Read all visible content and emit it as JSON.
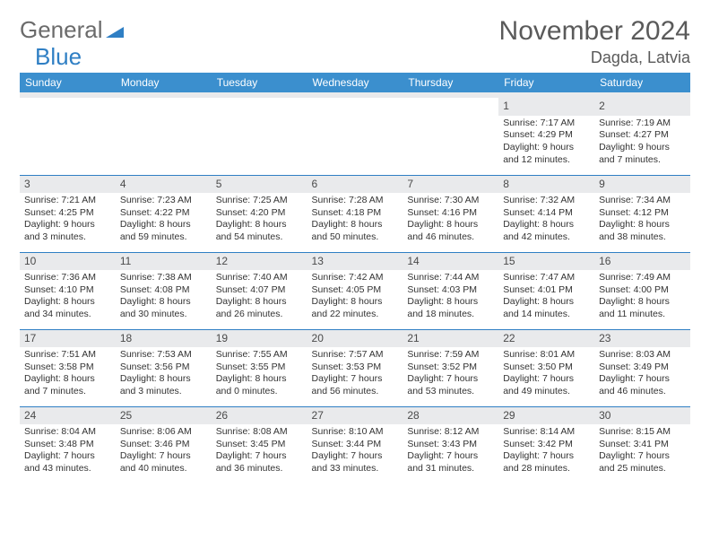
{
  "logo": {
    "part1": "General",
    "part2": "Blue"
  },
  "title": "November 2024",
  "location": "Dagda, Latvia",
  "colors": {
    "header_bg": "#3b8fce",
    "header_text": "#ffffff",
    "daynum_bg": "#e9eaec",
    "border": "#2f7fc4",
    "title_color": "#5a5a5a",
    "body_text": "#333333",
    "logo_blue": "#2f7fc4",
    "logo_gray": "#6b6b6b",
    "page_bg": "#ffffff"
  },
  "typography": {
    "title_fontsize": 30,
    "location_fontsize": 18,
    "header_fontsize": 12,
    "daynum_fontsize": 12,
    "body_fontsize": 10.5,
    "font_family": "Arial"
  },
  "calendar": {
    "type": "table",
    "columns": [
      "Sunday",
      "Monday",
      "Tuesday",
      "Wednesday",
      "Thursday",
      "Friday",
      "Saturday"
    ],
    "weeks": [
      [
        null,
        null,
        null,
        null,
        null,
        {
          "n": "1",
          "sr": "Sunrise: 7:17 AM",
          "ss": "Sunset: 4:29 PM",
          "d1": "Daylight: 9 hours",
          "d2": "and 12 minutes."
        },
        {
          "n": "2",
          "sr": "Sunrise: 7:19 AM",
          "ss": "Sunset: 4:27 PM",
          "d1": "Daylight: 9 hours",
          "d2": "and 7 minutes."
        }
      ],
      [
        {
          "n": "3",
          "sr": "Sunrise: 7:21 AM",
          "ss": "Sunset: 4:25 PM",
          "d1": "Daylight: 9 hours",
          "d2": "and 3 minutes."
        },
        {
          "n": "4",
          "sr": "Sunrise: 7:23 AM",
          "ss": "Sunset: 4:22 PM",
          "d1": "Daylight: 8 hours",
          "d2": "and 59 minutes."
        },
        {
          "n": "5",
          "sr": "Sunrise: 7:25 AM",
          "ss": "Sunset: 4:20 PM",
          "d1": "Daylight: 8 hours",
          "d2": "and 54 minutes."
        },
        {
          "n": "6",
          "sr": "Sunrise: 7:28 AM",
          "ss": "Sunset: 4:18 PM",
          "d1": "Daylight: 8 hours",
          "d2": "and 50 minutes."
        },
        {
          "n": "7",
          "sr": "Sunrise: 7:30 AM",
          "ss": "Sunset: 4:16 PM",
          "d1": "Daylight: 8 hours",
          "d2": "and 46 minutes."
        },
        {
          "n": "8",
          "sr": "Sunrise: 7:32 AM",
          "ss": "Sunset: 4:14 PM",
          "d1": "Daylight: 8 hours",
          "d2": "and 42 minutes."
        },
        {
          "n": "9",
          "sr": "Sunrise: 7:34 AM",
          "ss": "Sunset: 4:12 PM",
          "d1": "Daylight: 8 hours",
          "d2": "and 38 minutes."
        }
      ],
      [
        {
          "n": "10",
          "sr": "Sunrise: 7:36 AM",
          "ss": "Sunset: 4:10 PM",
          "d1": "Daylight: 8 hours",
          "d2": "and 34 minutes."
        },
        {
          "n": "11",
          "sr": "Sunrise: 7:38 AM",
          "ss": "Sunset: 4:08 PM",
          "d1": "Daylight: 8 hours",
          "d2": "and 30 minutes."
        },
        {
          "n": "12",
          "sr": "Sunrise: 7:40 AM",
          "ss": "Sunset: 4:07 PM",
          "d1": "Daylight: 8 hours",
          "d2": "and 26 minutes."
        },
        {
          "n": "13",
          "sr": "Sunrise: 7:42 AM",
          "ss": "Sunset: 4:05 PM",
          "d1": "Daylight: 8 hours",
          "d2": "and 22 minutes."
        },
        {
          "n": "14",
          "sr": "Sunrise: 7:44 AM",
          "ss": "Sunset: 4:03 PM",
          "d1": "Daylight: 8 hours",
          "d2": "and 18 minutes."
        },
        {
          "n": "15",
          "sr": "Sunrise: 7:47 AM",
          "ss": "Sunset: 4:01 PM",
          "d1": "Daylight: 8 hours",
          "d2": "and 14 minutes."
        },
        {
          "n": "16",
          "sr": "Sunrise: 7:49 AM",
          "ss": "Sunset: 4:00 PM",
          "d1": "Daylight: 8 hours",
          "d2": "and 11 minutes."
        }
      ],
      [
        {
          "n": "17",
          "sr": "Sunrise: 7:51 AM",
          "ss": "Sunset: 3:58 PM",
          "d1": "Daylight: 8 hours",
          "d2": "and 7 minutes."
        },
        {
          "n": "18",
          "sr": "Sunrise: 7:53 AM",
          "ss": "Sunset: 3:56 PM",
          "d1": "Daylight: 8 hours",
          "d2": "and 3 minutes."
        },
        {
          "n": "19",
          "sr": "Sunrise: 7:55 AM",
          "ss": "Sunset: 3:55 PM",
          "d1": "Daylight: 8 hours",
          "d2": "and 0 minutes."
        },
        {
          "n": "20",
          "sr": "Sunrise: 7:57 AM",
          "ss": "Sunset: 3:53 PM",
          "d1": "Daylight: 7 hours",
          "d2": "and 56 minutes."
        },
        {
          "n": "21",
          "sr": "Sunrise: 7:59 AM",
          "ss": "Sunset: 3:52 PM",
          "d1": "Daylight: 7 hours",
          "d2": "and 53 minutes."
        },
        {
          "n": "22",
          "sr": "Sunrise: 8:01 AM",
          "ss": "Sunset: 3:50 PM",
          "d1": "Daylight: 7 hours",
          "d2": "and 49 minutes."
        },
        {
          "n": "23",
          "sr": "Sunrise: 8:03 AM",
          "ss": "Sunset: 3:49 PM",
          "d1": "Daylight: 7 hours",
          "d2": "and 46 minutes."
        }
      ],
      [
        {
          "n": "24",
          "sr": "Sunrise: 8:04 AM",
          "ss": "Sunset: 3:48 PM",
          "d1": "Daylight: 7 hours",
          "d2": "and 43 minutes."
        },
        {
          "n": "25",
          "sr": "Sunrise: 8:06 AM",
          "ss": "Sunset: 3:46 PM",
          "d1": "Daylight: 7 hours",
          "d2": "and 40 minutes."
        },
        {
          "n": "26",
          "sr": "Sunrise: 8:08 AM",
          "ss": "Sunset: 3:45 PM",
          "d1": "Daylight: 7 hours",
          "d2": "and 36 minutes."
        },
        {
          "n": "27",
          "sr": "Sunrise: 8:10 AM",
          "ss": "Sunset: 3:44 PM",
          "d1": "Daylight: 7 hours",
          "d2": "and 33 minutes."
        },
        {
          "n": "28",
          "sr": "Sunrise: 8:12 AM",
          "ss": "Sunset: 3:43 PM",
          "d1": "Daylight: 7 hours",
          "d2": "and 31 minutes."
        },
        {
          "n": "29",
          "sr": "Sunrise: 8:14 AM",
          "ss": "Sunset: 3:42 PM",
          "d1": "Daylight: 7 hours",
          "d2": "and 28 minutes."
        },
        {
          "n": "30",
          "sr": "Sunrise: 8:15 AM",
          "ss": "Sunset: 3:41 PM",
          "d1": "Daylight: 7 hours",
          "d2": "and 25 minutes."
        }
      ]
    ]
  }
}
